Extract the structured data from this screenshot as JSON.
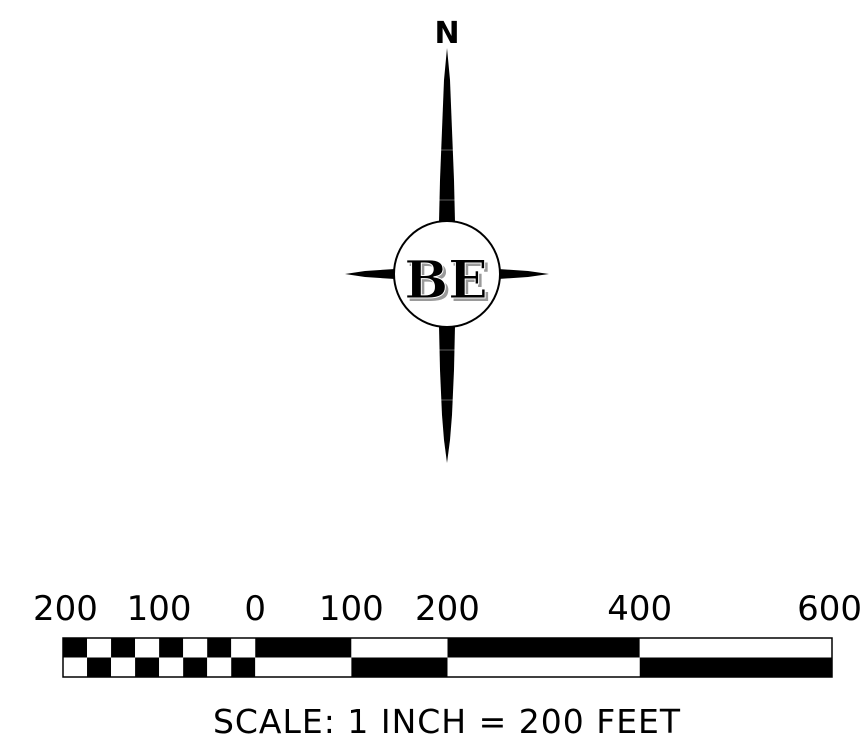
{
  "north_arrow": {
    "letter": "N",
    "logo_text": "BE"
  },
  "scale_bar": {
    "tick_labels": [
      "200",
      "100",
      "0",
      "100",
      "200",
      "400",
      "600"
    ],
    "caption": "SCALE: 1 INCH = 200 FEET",
    "units": "feet",
    "ticks": [
      -200,
      -100,
      0,
      100,
      200,
      400,
      600
    ],
    "minor_divisions": [
      -200,
      -175,
      -150,
      -125,
      -100,
      -75,
      -50,
      -25,
      0
    ],
    "major_divisions": [
      0,
      100,
      200,
      400,
      600
    ]
  },
  "colors": {
    "ink": "#000000",
    "paper": "#ffffff",
    "logo_shadow": "#9a9a9a"
  }
}
